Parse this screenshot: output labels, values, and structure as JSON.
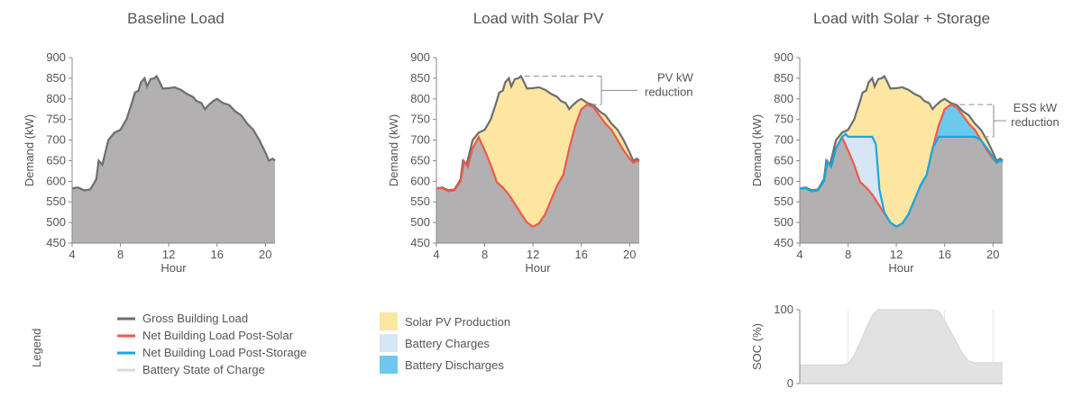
{
  "colors": {
    "gross_line": "#6e6e6e",
    "building_fill": "#b2b0b1",
    "solar_fill": "#fce6a2",
    "post_solar_line": "#ef5a4c",
    "post_storage_line": "#13a9e3",
    "battery_charge_fill": "#d6e6f4",
    "battery_discharge_fill": "#6cc9ee",
    "soc_fill": "#e2e2e2",
    "soc_line": "#dadada"
  },
  "chart_data": [
    {
      "type": "area",
      "title": "Baseline Load",
      "xlabel": "Hour",
      "ylabel": "Demand (kW)",
      "x_ticks": [
        "4",
        "8",
        "12",
        "16",
        "20"
      ],
      "y_ticks": [
        "450",
        "500",
        "550",
        "600",
        "650",
        "700",
        "750",
        "800",
        "850",
        "900"
      ],
      "xlim": [
        4,
        20.8
      ],
      "ylim": [
        450,
        900
      ],
      "series": [
        {
          "key": "gross",
          "x": [
            4,
            4.5,
            5,
            5.5,
            6,
            6.2,
            6.5,
            7,
            7.5,
            8,
            8.5,
            9,
            9.2,
            9.5,
            9.7,
            10,
            10.2,
            10.5,
            10.8,
            11,
            11.3,
            11.5,
            12,
            12.5,
            13,
            13.5,
            14,
            14.3,
            14.7,
            15,
            15.3,
            15.7,
            16,
            16.5,
            17,
            17.5,
            18,
            18.5,
            19,
            19.5,
            20,
            20.3,
            20.6,
            20.8
          ],
          "y": [
            583,
            585,
            578,
            580,
            605,
            650,
            640,
            700,
            718,
            725,
            750,
            795,
            815,
            820,
            840,
            850,
            830,
            848,
            850,
            855,
            838,
            825,
            826,
            828,
            822,
            812,
            805,
            795,
            790,
            775,
            785,
            795,
            800,
            790,
            785,
            770,
            760,
            740,
            725,
            700,
            670,
            650,
            655,
            650
          ]
        }
      ]
    },
    {
      "type": "area",
      "title": "Load with Solar PV",
      "xlabel": "Hour",
      "ylabel": "Demand (kW)",
      "x_ticks": [
        "4",
        "8",
        "12",
        "16",
        "20"
      ],
      "y_ticks": [
        "450",
        "500",
        "550",
        "600",
        "650",
        "700",
        "750",
        "800",
        "850",
        "900"
      ],
      "xlim": [
        4,
        20.8
      ],
      "ylim": [
        450,
        900
      ],
      "annotation": {
        "line1": "PV kW",
        "line2": "reduction"
      },
      "series": [
        {
          "key": "gross",
          "x": [
            4,
            4.5,
            5,
            5.5,
            6,
            6.2,
            6.5,
            7,
            7.5,
            8,
            8.5,
            9,
            9.2,
            9.5,
            9.7,
            10,
            10.2,
            10.5,
            10.8,
            11,
            11.3,
            11.5,
            12,
            12.5,
            13,
            13.5,
            14,
            14.3,
            14.7,
            15,
            15.3,
            15.7,
            16,
            16.5,
            17,
            17.5,
            18,
            18.5,
            19,
            19.5,
            20,
            20.3,
            20.6,
            20.8
          ],
          "y": [
            583,
            585,
            578,
            580,
            605,
            650,
            640,
            700,
            718,
            725,
            750,
            795,
            815,
            820,
            840,
            850,
            830,
            848,
            850,
            855,
            838,
            825,
            826,
            828,
            822,
            812,
            805,
            795,
            790,
            775,
            785,
            795,
            800,
            790,
            785,
            770,
            760,
            740,
            725,
            700,
            670,
            650,
            655,
            650
          ]
        },
        {
          "key": "post_solar",
          "x": [
            4,
            4.5,
            5,
            5.5,
            6,
            6.3,
            6.6,
            7,
            7.5,
            8,
            8.5,
            9,
            9.5,
            10,
            10.5,
            11,
            11.5,
            12,
            12.5,
            13,
            13.5,
            14,
            14.5,
            15,
            15.5,
            16,
            16.5,
            17,
            17.5,
            18,
            18.5,
            19,
            19.5,
            20,
            20.3,
            20.6,
            20.8
          ],
          "y": [
            583,
            583,
            576,
            578,
            600,
            648,
            635,
            680,
            707,
            675,
            640,
            598,
            585,
            568,
            545,
            522,
            500,
            490,
            498,
            520,
            555,
            590,
            615,
            680,
            735,
            775,
            786,
            780,
            760,
            740,
            725,
            700,
            675,
            655,
            645,
            650,
            648
          ]
        }
      ]
    },
    {
      "type": "area",
      "title": "Load with Solar + Storage",
      "xlabel": "Hour",
      "ylabel": "Demand (kW)",
      "x_ticks": [
        "4",
        "8",
        "12",
        "16",
        "20"
      ],
      "y_ticks": [
        "450",
        "500",
        "550",
        "600",
        "650",
        "700",
        "750",
        "800",
        "850",
        "900"
      ],
      "xlim": [
        4,
        20.8
      ],
      "ylim": [
        450,
        900
      ],
      "annotation": {
        "line1": "ESS kW",
        "line2": "reduction"
      },
      "series": [
        {
          "key": "gross",
          "x": [
            4,
            4.5,
            5,
            5.5,
            6,
            6.2,
            6.5,
            7,
            7.5,
            8,
            8.5,
            9,
            9.2,
            9.5,
            9.7,
            10,
            10.2,
            10.5,
            10.8,
            11,
            11.3,
            11.5,
            12,
            12.5,
            13,
            13.5,
            14,
            14.3,
            14.7,
            15,
            15.3,
            15.7,
            16,
            16.5,
            17,
            17.5,
            18,
            18.5,
            19,
            19.5,
            20,
            20.3,
            20.6,
            20.8
          ],
          "y": [
            583,
            585,
            578,
            580,
            605,
            650,
            640,
            700,
            718,
            725,
            750,
            795,
            815,
            820,
            840,
            850,
            830,
            848,
            850,
            855,
            838,
            825,
            826,
            828,
            822,
            812,
            805,
            795,
            790,
            775,
            785,
            795,
            800,
            790,
            785,
            770,
            760,
            740,
            725,
            700,
            670,
            650,
            655,
            650
          ]
        },
        {
          "key": "post_solar",
          "x": [
            4,
            4.5,
            5,
            5.5,
            6,
            6.3,
            6.6,
            7,
            7.5,
            8,
            8.5,
            9,
            9.5,
            10,
            10.5,
            11,
            11.5,
            12,
            12.5,
            13,
            13.5,
            14,
            14.5,
            15,
            15.5,
            16,
            16.5,
            17,
            17.5,
            18,
            18.5,
            19,
            19.5,
            20,
            20.3,
            20.6,
            20.8
          ],
          "y": [
            583,
            583,
            576,
            578,
            600,
            648,
            635,
            680,
            707,
            675,
            640,
            598,
            585,
            568,
            545,
            522,
            500,
            490,
            498,
            520,
            555,
            590,
            615,
            680,
            735,
            775,
            786,
            780,
            760,
            740,
            725,
            700,
            675,
            655,
            645,
            650,
            648
          ]
        },
        {
          "key": "post_storage",
          "x": [
            4,
            4.5,
            5,
            5.5,
            6,
            6.3,
            6.6,
            7,
            7.5,
            7.8,
            8,
            8.5,
            9,
            9.5,
            10,
            10.3,
            10.6,
            11,
            11.5,
            12,
            12.5,
            13,
            13.5,
            14,
            14.5,
            15,
            15.5,
            16,
            16.5,
            17,
            17.5,
            18,
            18.5,
            19,
            19.5,
            20,
            20.3,
            20.6,
            20.8
          ],
          "y": [
            583,
            583,
            576,
            578,
            600,
            648,
            635,
            680,
            707,
            715,
            708,
            708,
            708,
            708,
            708,
            690,
            580,
            525,
            500,
            490,
            498,
            520,
            555,
            590,
            615,
            680,
            708,
            708,
            708,
            708,
            708,
            708,
            708,
            700,
            680,
            660,
            645,
            650,
            648
          ]
        }
      ]
    },
    {
      "type": "area",
      "title": "",
      "xlabel": "",
      "ylabel": "SOC (%)",
      "y_ticks": [
        "0",
        "100"
      ],
      "xlim": [
        4,
        20.8
      ],
      "ylim": [
        0,
        100
      ],
      "series": [
        {
          "key": "soc",
          "x": [
            4,
            7.5,
            8,
            8.5,
            9,
            9.5,
            10,
            10.5,
            11,
            12,
            13,
            14,
            15,
            15.5,
            16,
            16.5,
            17,
            17.5,
            18,
            18.5,
            19,
            20,
            20.8
          ],
          "y": [
            25,
            25,
            27,
            38,
            55,
            75,
            92,
            100,
            100,
            100,
            100,
            100,
            100,
            98,
            85,
            70,
            55,
            40,
            30,
            28,
            28,
            28,
            28
          ]
        }
      ]
    }
  ],
  "legend": {
    "title": "Legend",
    "line_items": [
      {
        "label": "Gross Building Load",
        "color_key": "gross_line"
      },
      {
        "label": "Net Building Load Post-Solar",
        "color_key": "post_solar_line"
      },
      {
        "label": "Net Building Load Post-Storage",
        "color_key": "post_storage_line"
      },
      {
        "label": "Battery State of Charge",
        "color_key": "soc_line"
      }
    ],
    "swatch_items": [
      {
        "label": "Solar PV Production",
        "color_key": "solar_fill"
      },
      {
        "label": "Battery Charges",
        "color_key": "battery_charge_fill"
      },
      {
        "label": "Battery Discharges",
        "color_key": "battery_discharge_fill"
      }
    ]
  }
}
